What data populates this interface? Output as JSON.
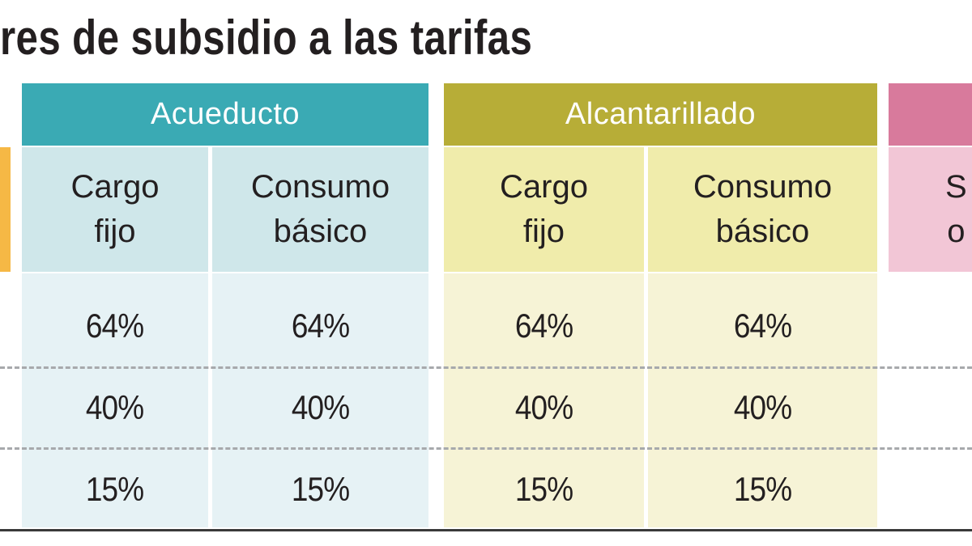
{
  "title": "res de subsidio a las tarifas",
  "colors": {
    "acueducto_header": "#3aaab4",
    "acueducto_sub": "#cfe7ea",
    "acueducto_body": "#e6f2f5",
    "alcantarillado_header": "#b7ad37",
    "alcantarillado_sub": "#f0ecab",
    "alcantarillado_body": "#f6f3d6",
    "third_header": "#d87a9c",
    "third_sub": "#f2c6d6",
    "left_accent": "#f6b845",
    "dashed_line": "#a7a9ac",
    "bottom_line": "#3a3a3a"
  },
  "groups": [
    {
      "label": "Acueducto"
    },
    {
      "label": "Alcantarillado"
    },
    {
      "label": ""
    }
  ],
  "subheaders": {
    "cargo_fijo": [
      "Cargo",
      "fijo"
    ],
    "consumo_basico": [
      "Consumo",
      "básico"
    ],
    "third_partial": [
      "S",
      "o"
    ]
  },
  "rows": [
    [
      "64%",
      "64%",
      "64%",
      "64%"
    ],
    [
      "40%",
      "40%",
      "40%",
      "40%"
    ],
    [
      "15%",
      "15%",
      "15%",
      "15%"
    ]
  ]
}
